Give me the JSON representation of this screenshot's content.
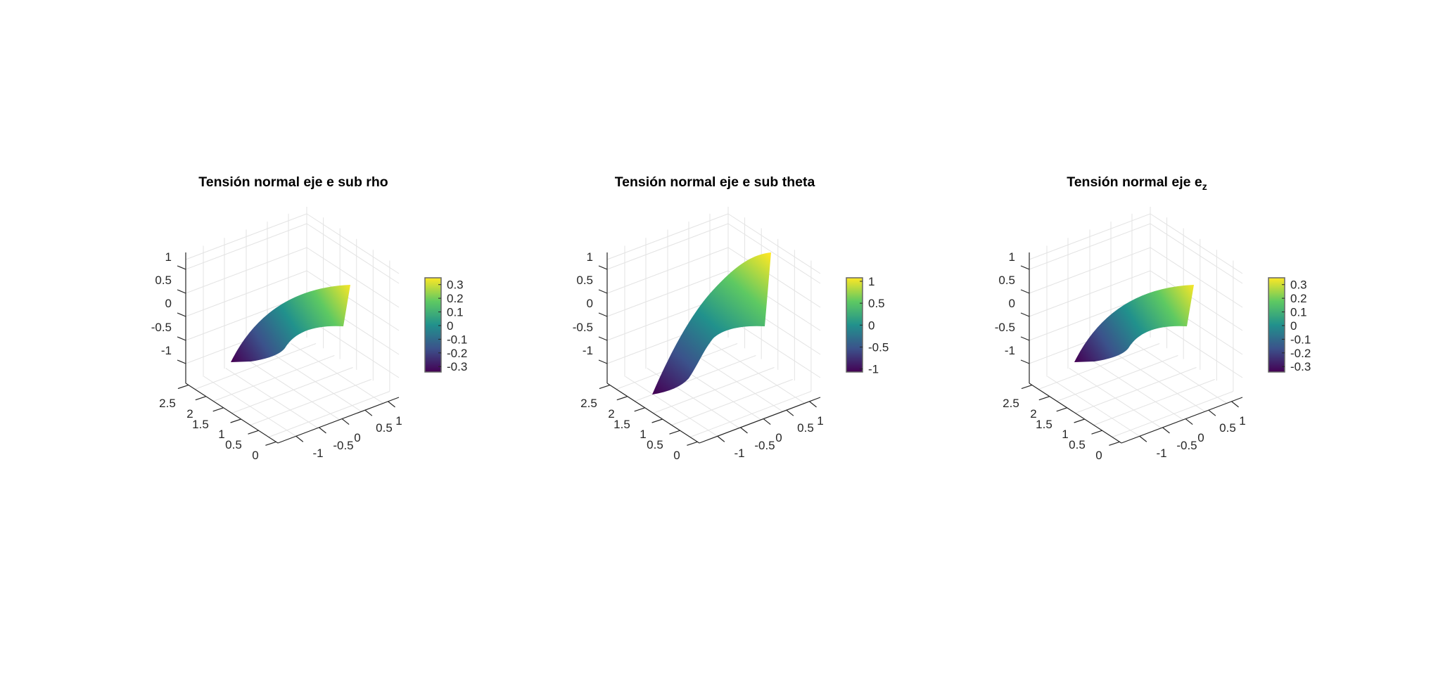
{
  "chart_data": [
    {
      "type": "surface3d",
      "title": "Tensión normal eje e sub rho",
      "title_sub": "",
      "zticks": [
        "1",
        "0.5",
        "0",
        "-0.5",
        "-1"
      ],
      "yticks": [
        "2.5",
        "2",
        "1.5",
        "1",
        "0.5",
        "0"
      ],
      "xticks": [
        "-1",
        "-0.5",
        "0",
        "0.5",
        "1"
      ],
      "colorbar": {
        "ticks": [
          "0.3",
          "0.2",
          "0.1",
          "0",
          "-0.1",
          "-0.2",
          "-0.3"
        ],
        "values": [
          0.3,
          0.2,
          0.1,
          0,
          -0.1,
          -0.2,
          -0.3
        ],
        "clim": [
          -0.34,
          0.35
        ]
      },
      "colormap": [
        "#440154",
        "#3b528b",
        "#21918c",
        "#5ec962",
        "#fde725"
      ],
      "surface_shape": "flat"
    },
    {
      "type": "surface3d",
      "title": "Tensión normal eje e sub theta",
      "title_sub": "",
      "zticks": [
        "1",
        "0.5",
        "0",
        "-0.5",
        "-1"
      ],
      "yticks": [
        "2.5",
        "2",
        "1.5",
        "1",
        "0.5",
        "0"
      ],
      "xticks": [
        "-1",
        "-0.5",
        "0",
        "0.5",
        "1"
      ],
      "colorbar": {
        "ticks": [
          "1",
          "0.5",
          "0",
          "-0.5",
          "-1"
        ],
        "values": [
          1,
          0.5,
          0,
          -0.5,
          -1
        ],
        "clim": [
          -1.07,
          1.08
        ]
      },
      "colormap": [
        "#440154",
        "#3b528b",
        "#21918c",
        "#5ec962",
        "#fde725"
      ],
      "surface_shape": "twisted"
    },
    {
      "type": "surface3d",
      "title": "Tensión normal eje e",
      "title_sub": "z",
      "zticks": [
        "1",
        "0.5",
        "0",
        "-0.5",
        "-1"
      ],
      "yticks": [
        "2.5",
        "2",
        "1.5",
        "1",
        "0.5",
        "0"
      ],
      "xticks": [
        "-1",
        "-0.5",
        "0",
        "0.5",
        "1"
      ],
      "colorbar": {
        "ticks": [
          "0.3",
          "0.2",
          "0.1",
          "0",
          "-0.1",
          "-0.2",
          "-0.3"
        ],
        "values": [
          0.3,
          0.2,
          0.1,
          0,
          -0.1,
          -0.2,
          -0.3
        ],
        "clim": [
          -0.34,
          0.35
        ]
      },
      "colormap": [
        "#440154",
        "#3b528b",
        "#21918c",
        "#5ec962",
        "#fde725"
      ],
      "surface_shape": "flat"
    }
  ]
}
